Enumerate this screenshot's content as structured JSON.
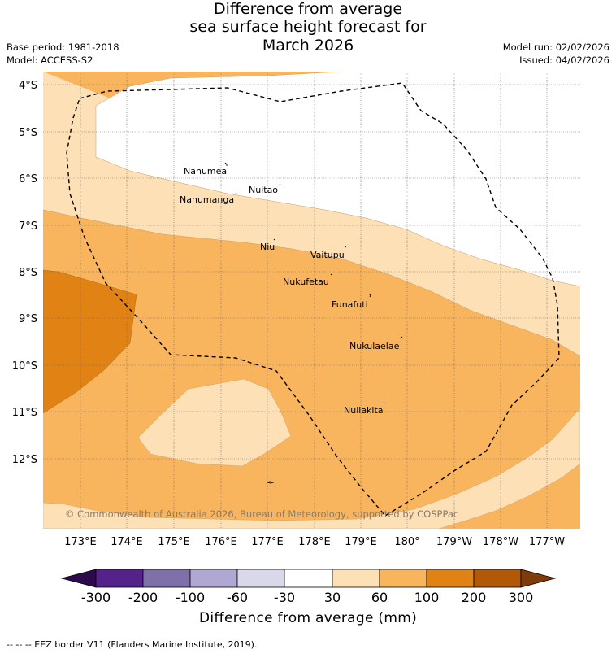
{
  "title": {
    "line1": "Difference from average",
    "line2": "sea surface height forecast for",
    "line3": "March 2026"
  },
  "meta": {
    "base_period": "Base period: 1981-2018",
    "model": "Model: ACCESS-S2",
    "model_run": "Model run: 02/02/2026",
    "issued": "Issued: 04/02/2026"
  },
  "map": {
    "lat_labels": [
      "4°S",
      "5°S",
      "6°S",
      "7°S",
      "8°S",
      "9°S",
      "10°S",
      "11°S",
      "12°S"
    ],
    "lon_labels": [
      "173°E",
      "174°E",
      "175°E",
      "176°E",
      "177°E",
      "178°E",
      "179°E",
      "180°",
      "179°W",
      "178°W",
      "177°W"
    ],
    "places": [
      "Nanumea",
      "Nuitao",
      "Nanumanga",
      "Niu",
      "Vaitupu",
      "Nukufetau",
      "Funafuti",
      "Nukulaelae",
      "Nuilakita"
    ],
    "copyright": "© Commonwealth of Australia 2026, Bureau of Meteorology, supported by COSPPac"
  },
  "colorbar": {
    "labels": [
      "-300",
      "-200",
      "-100",
      "-60",
      "-30",
      "30",
      "60",
      "100",
      "200",
      "300"
    ],
    "colors": [
      "#2d0a4e",
      "#55228c",
      "#8070aa",
      "#b0a8d2",
      "#d8d8ea",
      "#ffffff",
      "#fde0b6",
      "#f9b55e",
      "#e08214",
      "#b35806",
      "#7f3b08"
    ],
    "title": "Difference from average (mm)"
  },
  "footnote": "--  --  -- EEZ border V11 (Flanders Marine Institute, 2019)."
}
